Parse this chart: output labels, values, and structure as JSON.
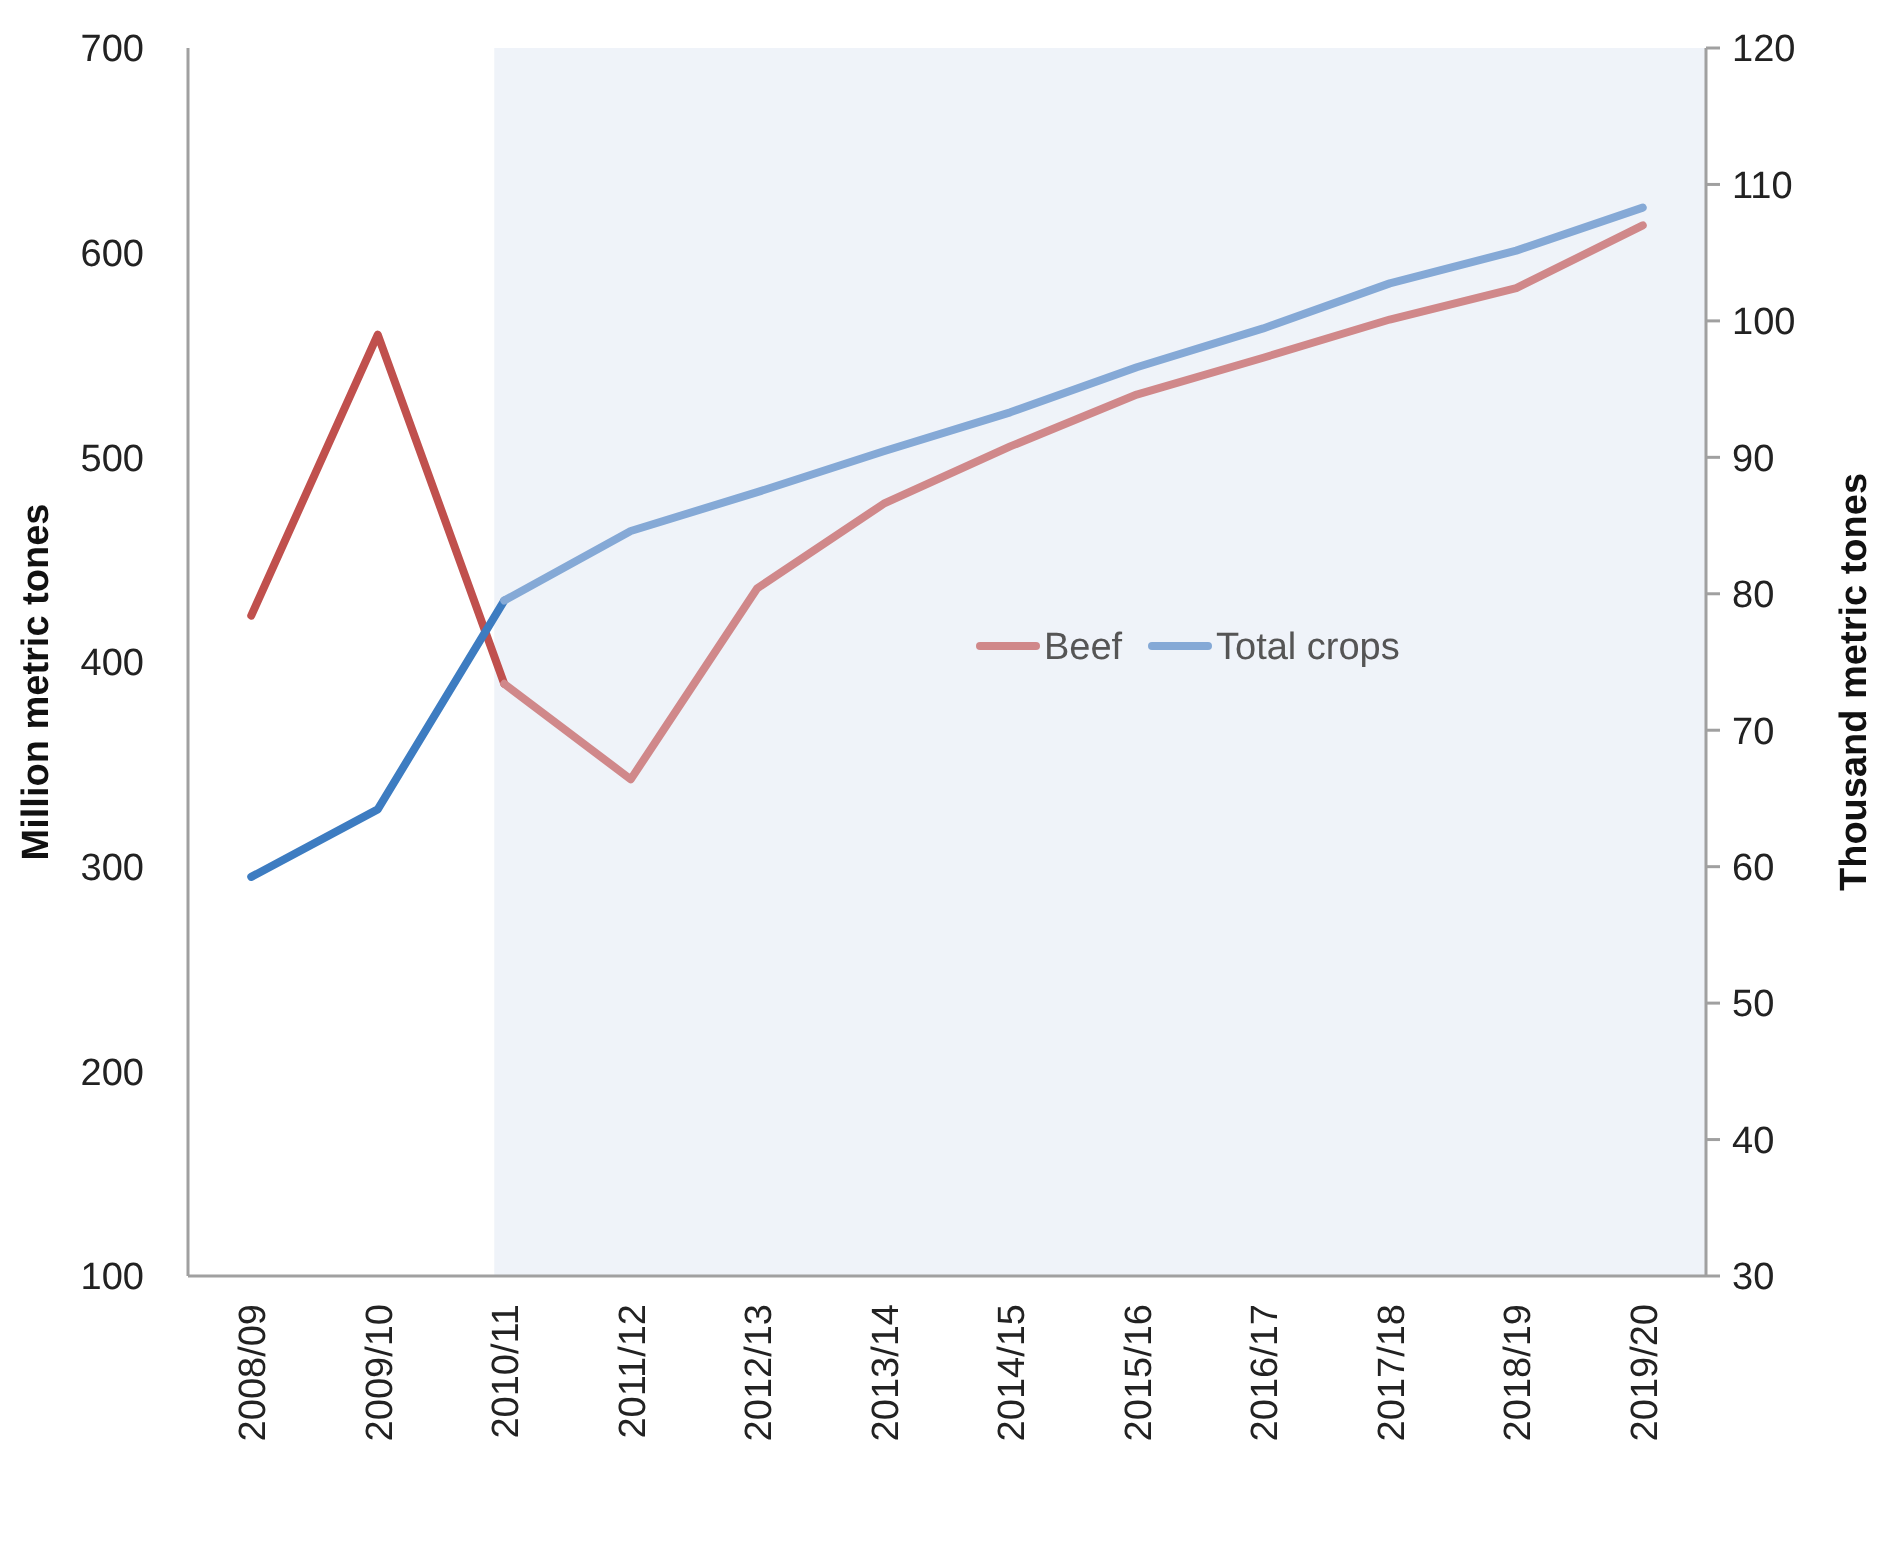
{
  "chart_data": {
    "type": "line",
    "categories": [
      "2008/09",
      "2009/10",
      "2010/11",
      "2011/12",
      "2012/13",
      "2013/14",
      "2014/15",
      "2015/16",
      "2016/17",
      "2017/18",
      "2018/19",
      "2019/20"
    ],
    "series": [
      {
        "color": "#c0504d",
        "axis": "y2",
        "values": [
          78.4,
          99,
          73.4,
          null,
          null,
          null,
          null,
          null,
          null,
          null,
          null,
          null
        ]
      },
      {
        "color": "#3d7cc1",
        "values": [
          295,
          328,
          430,
          null,
          null,
          null,
          null,
          null,
          null,
          null,
          null,
          null
        ]
      },
      {
        "name": "Beef",
        "color": "#d0888a",
        "axis": "y2",
        "values": [
          null,
          null,
          73.4,
          66.4,
          80.4,
          86.6,
          90.8,
          94.6,
          97.3,
          100.1,
          102.4,
          107
        ]
      },
      {
        "name": "Total crops",
        "color": "#85a9d6",
        "values": [
          null,
          null,
          430,
          464,
          483,
          503,
          522,
          544,
          563,
          585,
          601,
          622
        ]
      }
    ],
    "ylabel": "Million metric tones",
    "y2label": "Thousand  metric tones",
    "ylim": [
      100,
      700
    ],
    "yticks": [
      100,
      200,
      300,
      400,
      500,
      600,
      700
    ],
    "y2lim": [
      30,
      120
    ],
    "y2ticks": [
      30,
      40,
      50,
      60,
      70,
      80,
      90,
      100,
      110,
      120
    ],
    "bands": [
      {
        "axis": "x",
        "from": "2010/11",
        "to": "2019/20",
        "color": "#eff3f9"
      }
    ],
    "legend": "right",
    "grid": false,
    "marker": "none",
    "line_style": "solid"
  }
}
